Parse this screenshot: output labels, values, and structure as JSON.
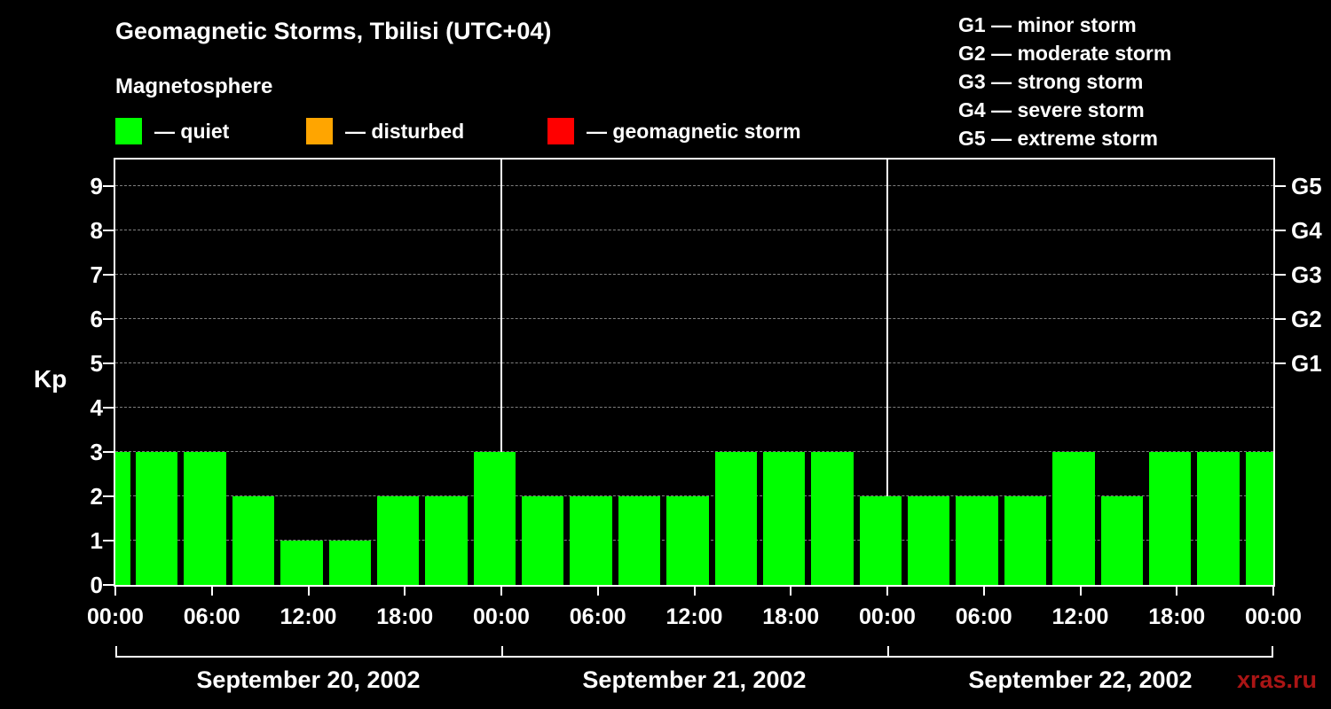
{
  "header": {
    "title": "Geomagnetic Storms, Tbilisi (UTC+04)",
    "subtitle": "Magnetosphere"
  },
  "legend": {
    "items": [
      {
        "name": "quiet",
        "label": "— quiet",
        "color": "#00ff00"
      },
      {
        "name": "disturbed",
        "label": "— disturbed",
        "color": "#ffa500"
      },
      {
        "name": "storm",
        "label": "— geomagnetic storm",
        "color": "#ff0000"
      }
    ]
  },
  "g_legend": {
    "lines": [
      "G1 — minor storm",
      "G2 — moderate storm",
      "G3 — strong storm",
      "G4 — severe storm",
      "G5 — extreme storm"
    ]
  },
  "watermark": "xras.ru",
  "chart_data": {
    "type": "bar",
    "title": "Geomagnetic Storms, Tbilisi (UTC+04)",
    "subtitle": "Magnetosphere",
    "ylabel": "Kp",
    "ylim": [
      0,
      9.6
    ],
    "y_ticks": [
      0,
      1,
      2,
      3,
      4,
      5,
      6,
      7,
      8,
      9
    ],
    "grid": true,
    "grid_style": "dashed",
    "bar_color": "#00ff00",
    "background": "#000000",
    "hours_per_bar": 3,
    "right_axis": [
      {
        "label": "G1",
        "kp": 5
      },
      {
        "label": "G2",
        "kp": 6
      },
      {
        "label": "G3",
        "kp": 7
      },
      {
        "label": "G4",
        "kp": 8
      },
      {
        "label": "G5",
        "kp": 9
      }
    ],
    "x_tick_labels": [
      "00:00",
      "06:00",
      "12:00",
      "18:00",
      "00:00",
      "06:00",
      "12:00",
      "18:00",
      "00:00",
      "06:00",
      "12:00",
      "18:00",
      "00:00"
    ],
    "days": [
      {
        "date": "September 20, 2002",
        "kp": [
          3,
          3,
          2,
          1,
          1,
          2,
          2,
          3
        ]
      },
      {
        "date": "September 21, 2002",
        "kp": [
          2,
          2,
          2,
          2,
          3,
          3,
          3,
          2
        ]
      },
      {
        "date": "September 22, 2002",
        "kp": [
          2,
          2,
          2,
          3,
          2,
          3,
          3,
          3
        ]
      }
    ],
    "partial_left_kp": 3
  }
}
